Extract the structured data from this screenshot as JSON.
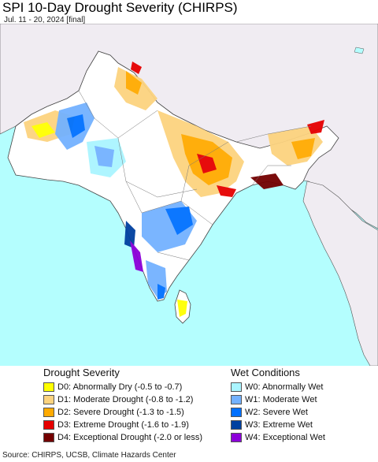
{
  "header": {
    "title": "SPI 10-Day Drought Severity (CHIRPS)",
    "subtitle": "Jul. 11 - 20, 2024 [final]"
  },
  "legend": {
    "drought": {
      "title": "Drought Severity",
      "items": [
        {
          "label": "D0: Abnormally Dry (-0.5 to -0.7)",
          "color": "#ffff00"
        },
        {
          "label": "D1: Moderate Drought (-0.8 to -1.2)",
          "color": "#fcd37f"
        },
        {
          "label": "D2: Severe Drought (-1.3 to -1.5)",
          "color": "#ffaa00"
        },
        {
          "label": "D3: Extreme Drought (-1.6 to -1.9)",
          "color": "#e60000"
        },
        {
          "label": "D4: Exceptional Drought (-2.0 or less)",
          "color": "#730000"
        }
      ]
    },
    "wet": {
      "title": "Wet Conditions",
      "items": [
        {
          "label": "W0: Abnormally Wet",
          "color": "#aaf5ff"
        },
        {
          "label": "W1: Moderate Wet",
          "color": "#73b2ff"
        },
        {
          "label": "W2: Severe Wet",
          "color": "#0070ff"
        },
        {
          "label": "W3: Extreme Wet",
          "color": "#0040a0"
        },
        {
          "label": "W4: Exceptional Wet",
          "color": "#8c00d9"
        }
      ]
    }
  },
  "map_colors": {
    "water": "#b4fefe",
    "outside_land": "#f0ecf2",
    "border": "#444444"
  },
  "footer": {
    "source": "Source: CHIRPS, UCSB, Climate Hazards Center"
  }
}
